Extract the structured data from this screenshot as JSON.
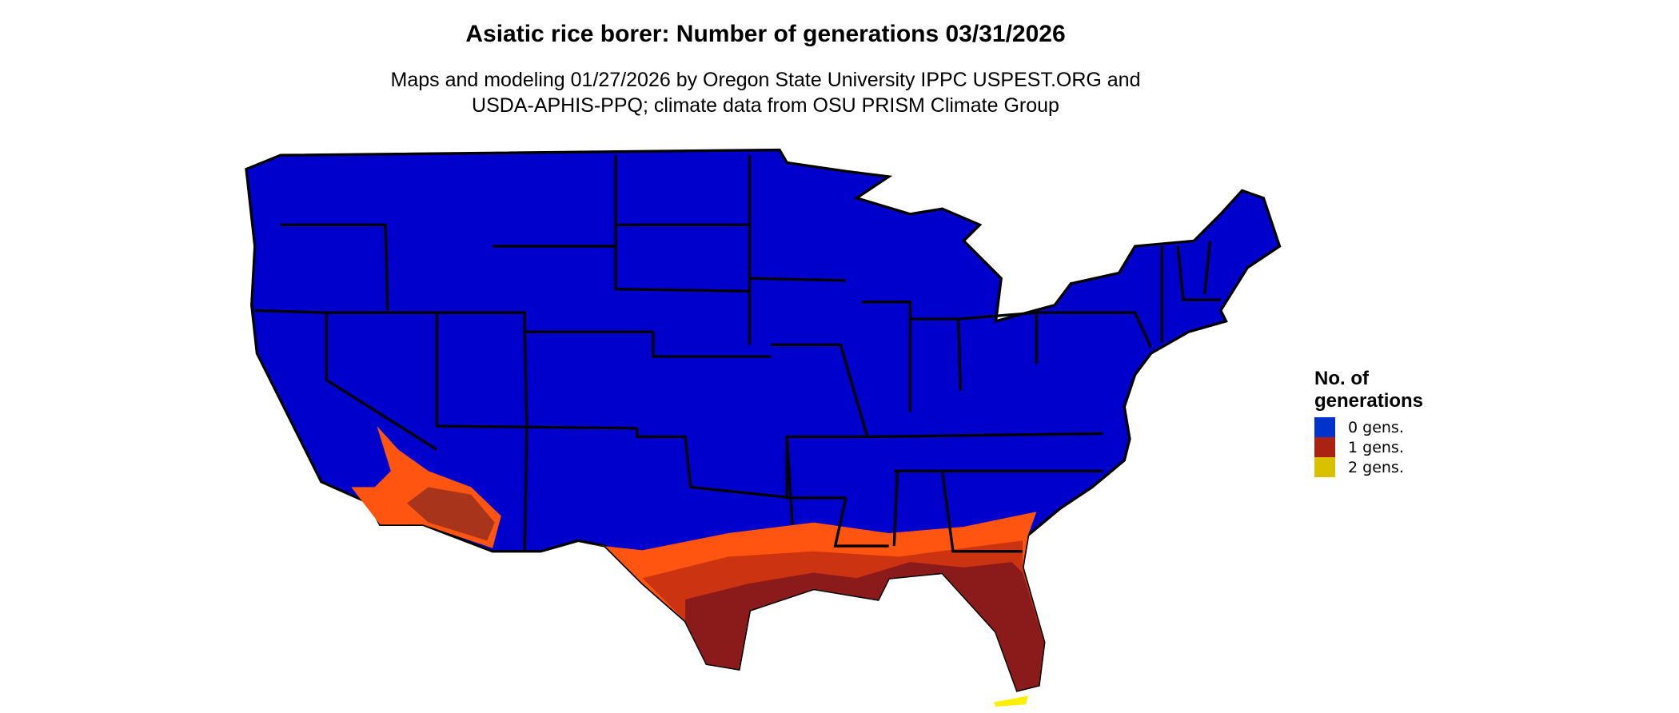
{
  "title": "Asiatic rice borer: Number of generations 03/31/2026",
  "subtitle_line1": "Maps and modeling 01/27/2026 by Oregon State University IPPC USPEST.ORG and",
  "subtitle_line2": "USDA-APHIS-PPQ; climate data from OSU PRISM Climate Group",
  "legend": {
    "title": "No. of generations",
    "items": [
      {
        "label": "0 gens.",
        "color": "#0033cc"
      },
      {
        "label": "1 gens.",
        "color": "#aa2211"
      },
      {
        "label": "2 gens.",
        "color": "#d9c100"
      }
    ]
  },
  "map_colors": {
    "zero": "#0000cc",
    "one_dark": "#8b1a1a",
    "one_mid": "#cc3311",
    "one_light": "#ff5511",
    "two": "#ffee00",
    "borders": "#000000"
  }
}
